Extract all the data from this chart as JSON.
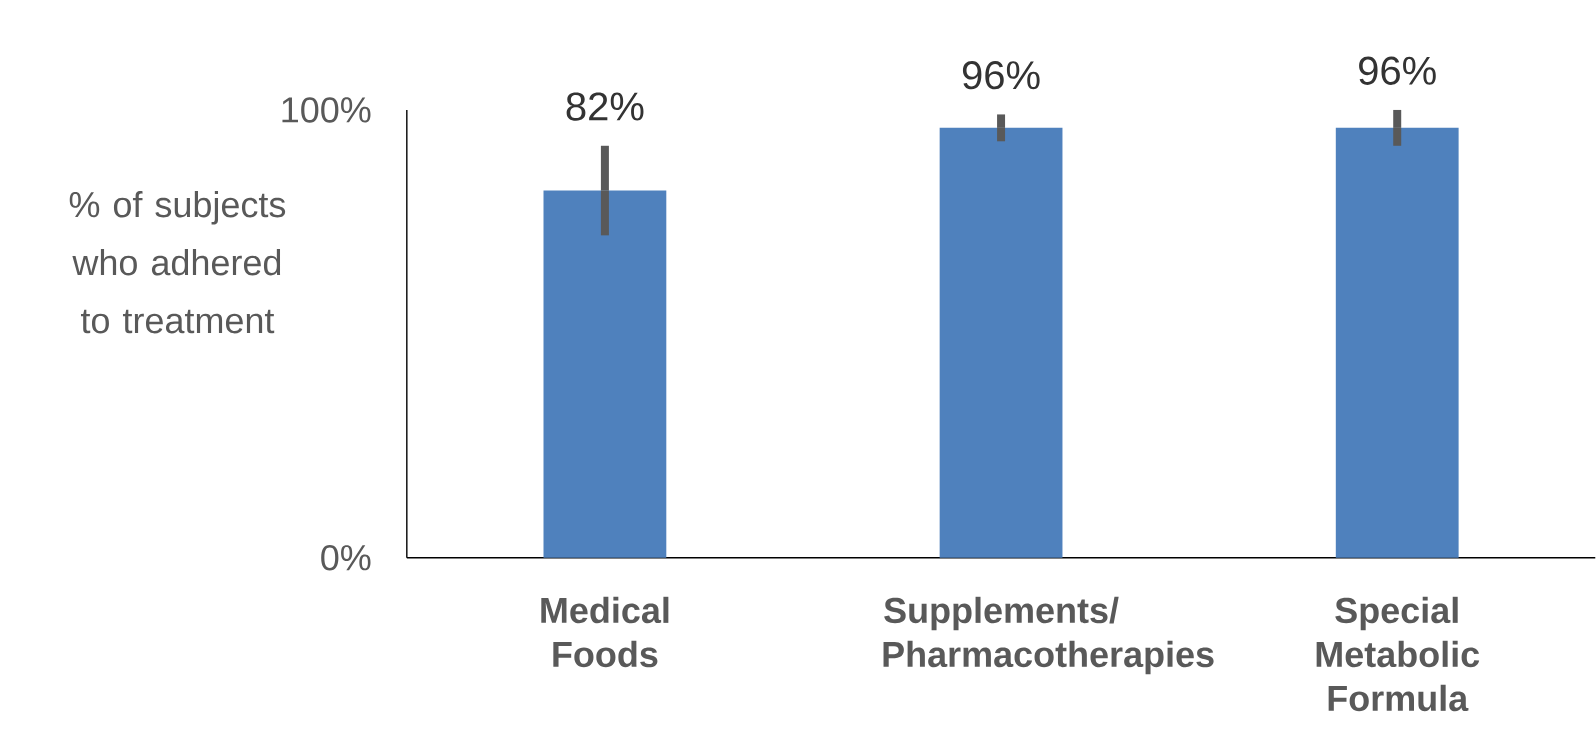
{
  "chart_data": {
    "type": "bar",
    "ylabel": "% of subjects who adhered to treatment",
    "categories": [
      "Medical Foods",
      "Supplements/ Pharmacotherapies",
      "Special Metabolic Formula"
    ],
    "values": [
      82,
      96,
      96
    ],
    "errors": [
      10,
      3,
      4
    ],
    "color": "#4f81bd",
    "value_labels": [
      "82%",
      "96%",
      "96%"
    ],
    "ylim": [
      0,
      100
    ],
    "yticks": [
      {
        "value": 0,
        "label": "0%"
      },
      {
        "value": 100,
        "label": "100%"
      }
    ],
    "grid": false
  }
}
